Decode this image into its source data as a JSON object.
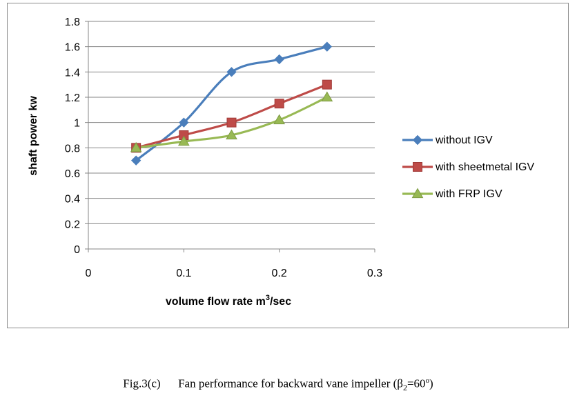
{
  "chart_data": {
    "type": "line",
    "title": "",
    "xlabel": "volume flow rate m",
    "xlabel_superscript": "3",
    "xlabel_suffix": "/sec",
    "ylabel": "shaft power kw",
    "xlim": [
      0,
      0.3
    ],
    "ylim": [
      0,
      1.8
    ],
    "x_ticks": [
      "0",
      "0.1",
      "0.2",
      "0.3"
    ],
    "y_ticks": [
      "0",
      "0.2",
      "0.4",
      "0.6",
      "0.8",
      "1",
      "1.2",
      "1.4",
      "1.6",
      "1.8"
    ],
    "grid": "horizontal",
    "legend_position": "right",
    "series": [
      {
        "name": "without IGV",
        "color": "#4a7ebb",
        "marker": "diamond",
        "x": [
          0.05,
          0.1,
          0.15,
          0.2,
          0.25
        ],
        "y": [
          0.7,
          1.0,
          1.4,
          1.5,
          1.6
        ]
      },
      {
        "name": "with sheetmetal IGV",
        "color": "#be4b48",
        "marker": "square",
        "x": [
          0.05,
          0.1,
          0.15,
          0.2,
          0.25
        ],
        "y": [
          0.8,
          0.9,
          1.0,
          1.15,
          1.3
        ]
      },
      {
        "name": "with FRP IGV",
        "color": "#98b954",
        "marker": "triangle",
        "x": [
          0.05,
          0.1,
          0.15,
          0.2,
          0.25
        ],
        "y": [
          0.8,
          0.85,
          0.9,
          1.02,
          1.2
        ]
      }
    ]
  },
  "caption": {
    "figure_number": "Fig.3(c)",
    "text": "Fan performance for backward vane impeller (β",
    "subscript": "2",
    "suffix": "=60",
    "degree": "o",
    "close": ")"
  }
}
